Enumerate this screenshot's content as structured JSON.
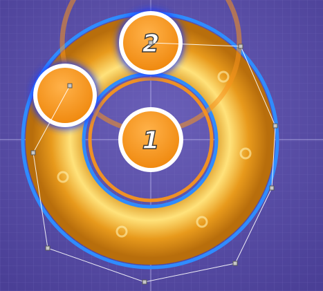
{
  "editor": {
    "background_color": "#5a4ea8",
    "grid_color": "#7a70c0"
  },
  "slider": {
    "body_color": "#f0a820",
    "body_highlight": "#ffe27a",
    "border_color": "#2f8cff",
    "tick_count": 5
  },
  "hit_circles": [
    {
      "id": "circle-1",
      "label": "1",
      "fill": "#f7931e",
      "ring": "#ffffff",
      "glow": "#1e3cff"
    },
    {
      "id": "circle-2",
      "label": "2",
      "fill": "#f7931e",
      "ring": "#ffffff",
      "glow": "#1e3cff"
    },
    {
      "id": "slider-head",
      "label": "",
      "fill": "#f7931e",
      "ring": "#ffffff",
      "glow": "#1e3cff"
    }
  ],
  "approach_circle_color": "#f7931e",
  "control_point_count": 9,
  "icons": {
    "control_point": "control-point-icon",
    "slider_tick": "slider-tick-icon"
  }
}
